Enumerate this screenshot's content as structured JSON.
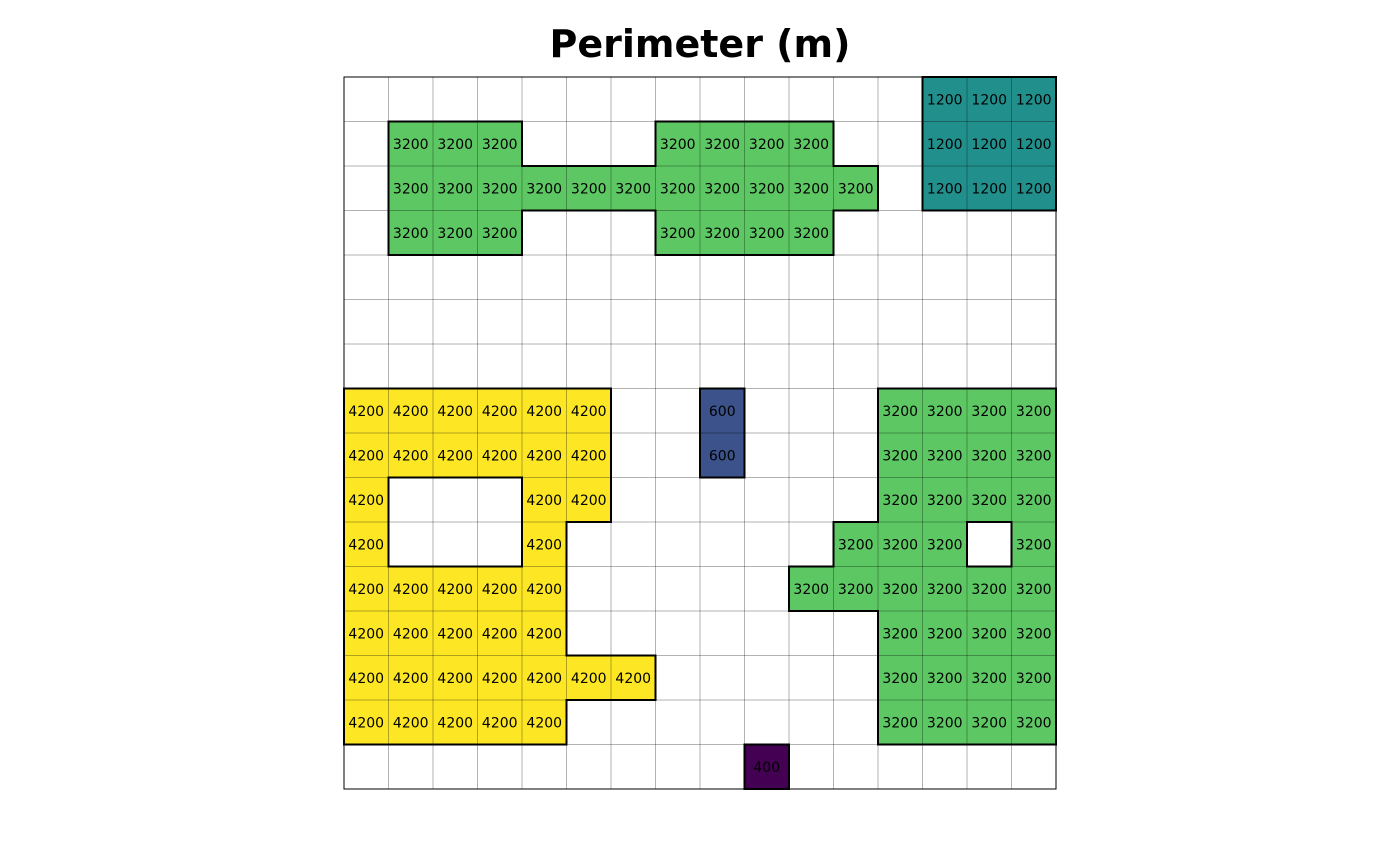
{
  "chart_data": {
    "type": "heatmap",
    "title": "Perimeter (m)",
    "nrows": 16,
    "ncols": 16,
    "colors": {
      "400": "#440154",
      "600": "#3b528b",
      "1200": "#21908c",
      "3200": "#5dc863",
      "4200": "#fde725"
    },
    "grid": [
      [
        null,
        null,
        null,
        null,
        null,
        null,
        null,
        null,
        null,
        null,
        null,
        null,
        null,
        1200,
        1200,
        1200
      ],
      [
        null,
        3200,
        3200,
        3200,
        null,
        null,
        null,
        3200,
        3200,
        3200,
        3200,
        null,
        null,
        1200,
        1200,
        1200
      ],
      [
        null,
        3200,
        3200,
        3200,
        3200,
        3200,
        3200,
        3200,
        3200,
        3200,
        3200,
        3200,
        null,
        1200,
        1200,
        1200
      ],
      [
        null,
        3200,
        3200,
        3200,
        null,
        null,
        null,
        3200,
        3200,
        3200,
        3200,
        null,
        null,
        null,
        null,
        null
      ],
      [
        null,
        null,
        null,
        null,
        null,
        null,
        null,
        null,
        null,
        null,
        null,
        null,
        null,
        null,
        null,
        null
      ],
      [
        null,
        null,
        null,
        null,
        null,
        null,
        null,
        null,
        null,
        null,
        null,
        null,
        null,
        null,
        null,
        null
      ],
      [
        null,
        null,
        null,
        null,
        null,
        null,
        null,
        null,
        null,
        null,
        null,
        null,
        null,
        null,
        null,
        null
      ],
      [
        4200,
        4200,
        4200,
        4200,
        4200,
        4200,
        null,
        null,
        600,
        null,
        null,
        null,
        3200,
        3200,
        3200,
        3200
      ],
      [
        4200,
        4200,
        4200,
        4200,
        4200,
        4200,
        null,
        null,
        600,
        null,
        null,
        null,
        3200,
        3200,
        3200,
        3200
      ],
      [
        4200,
        null,
        null,
        null,
        4200,
        4200,
        null,
        null,
        null,
        null,
        null,
        null,
        3200,
        3200,
        3200,
        3200
      ],
      [
        4200,
        null,
        null,
        null,
        4200,
        null,
        null,
        null,
        null,
        null,
        null,
        3200,
        3200,
        3200,
        null,
        3200
      ],
      [
        4200,
        4200,
        4200,
        4200,
        4200,
        null,
        null,
        null,
        null,
        null,
        3200,
        3200,
        3200,
        3200,
        3200,
        3200
      ],
      [
        4200,
        4200,
        4200,
        4200,
        4200,
        null,
        null,
        null,
        null,
        null,
        null,
        null,
        3200,
        3200,
        3200,
        3200
      ],
      [
        4200,
        4200,
        4200,
        4200,
        4200,
        4200,
        4200,
        null,
        null,
        null,
        null,
        null,
        3200,
        3200,
        3200,
        3200
      ],
      [
        4200,
        4200,
        4200,
        4200,
        4200,
        null,
        null,
        null,
        null,
        null,
        null,
        null,
        3200,
        3200,
        3200,
        3200
      ],
      [
        null,
        null,
        null,
        null,
        null,
        null,
        null,
        null,
        null,
        400,
        null,
        null,
        null,
        null,
        null,
        null
      ]
    ]
  }
}
